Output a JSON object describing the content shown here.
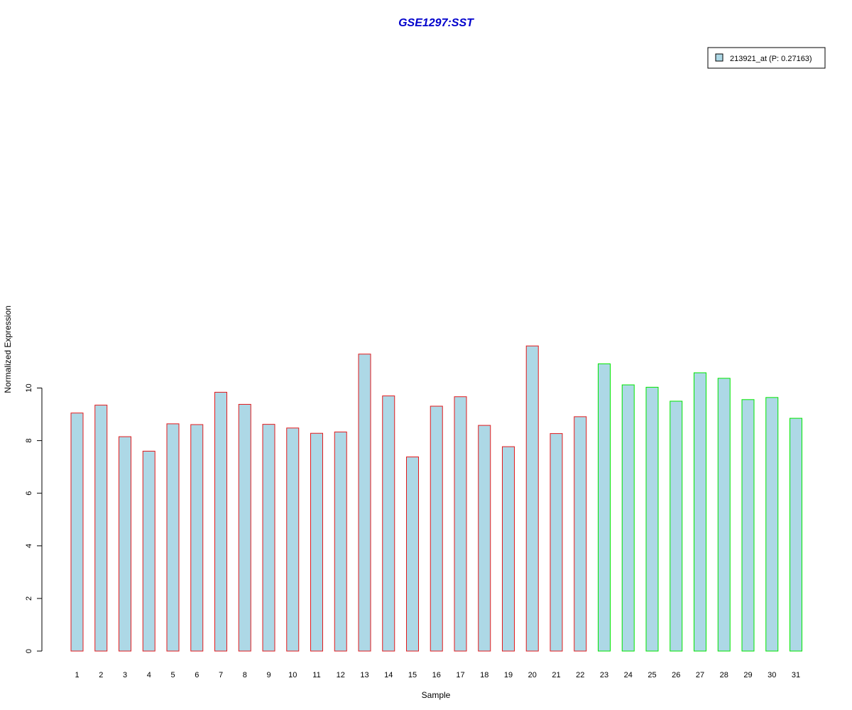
{
  "chart_data": {
    "type": "bar",
    "title": "GSE1297:SST",
    "xlabel": "Sample",
    "ylabel": "Normalized Expression",
    "categories": [
      "1",
      "2",
      "3",
      "4",
      "5",
      "6",
      "7",
      "8",
      "9",
      "10",
      "11",
      "12",
      "13",
      "14",
      "15",
      "16",
      "17",
      "18",
      "19",
      "20",
      "21",
      "22",
      "23",
      "24",
      "25",
      "26",
      "27",
      "28",
      "29",
      "30",
      "31"
    ],
    "series": [
      {
        "name": "213921_at (P: 0.27163)",
        "values": [
          9.05,
          9.35,
          8.15,
          7.6,
          8.64,
          8.61,
          9.84,
          9.38,
          8.62,
          8.48,
          8.28,
          8.33,
          11.29,
          9.7,
          7.38,
          9.31,
          9.67,
          8.58,
          7.77,
          11.6,
          8.27,
          8.91,
          10.92,
          10.12,
          10.03,
          9.5,
          10.58,
          10.37,
          9.56,
          9.64,
          8.85
        ]
      }
    ],
    "groups": [
      {
        "count": 22,
        "border_color": "#e31a1c"
      },
      {
        "count": 9,
        "border_color": "#00e600"
      }
    ],
    "bar_fill": "#add8e6",
    "ylim": [
      0,
      11.6
    ],
    "yticks": [
      0,
      2,
      4,
      6,
      8,
      10
    ],
    "legend_position": "top-right",
    "legend_border_color": "#000000",
    "grid": false
  },
  "colors": {
    "title": "#0000cc",
    "axis": "#000000",
    "background": "#ffffff"
  }
}
